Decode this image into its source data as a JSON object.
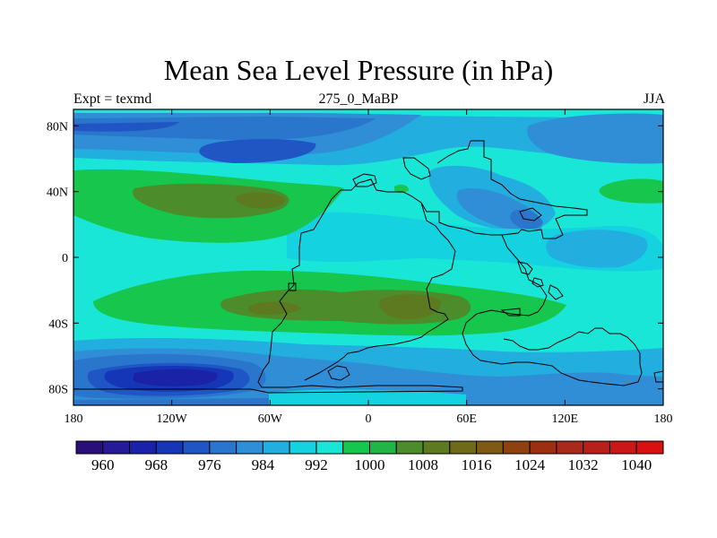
{
  "title": "Mean Sea Level Pressure (in hPa)",
  "subtitle_left": "Expt = texmd",
  "subtitle_center": "275_0_MaBP",
  "subtitle_right": "JJA",
  "map": {
    "lon_range": [
      -180,
      180
    ],
    "lat_range": [
      -90,
      90
    ],
    "lat_ticks": [
      {
        "value": 80,
        "label": "80N"
      },
      {
        "value": 40,
        "label": "40N"
      },
      {
        "value": 0,
        "label": "0"
      },
      {
        "value": -40,
        "label": "40S"
      },
      {
        "value": -80,
        "label": "80S"
      }
    ],
    "lon_ticks": [
      {
        "value": -180,
        "label": "180"
      },
      {
        "value": -120,
        "label": "120W"
      },
      {
        "value": -60,
        "label": "60W"
      },
      {
        "value": 0,
        "label": "0"
      },
      {
        "value": 60,
        "label": "60E"
      },
      {
        "value": 120,
        "label": "120E"
      },
      {
        "value": 180,
        "label": "180"
      }
    ]
  },
  "colorbar": {
    "colors": [
      "#2b0f78",
      "#261a96",
      "#1a22a8",
      "#1636b8",
      "#1f56c4",
      "#2a76cc",
      "#2f8ed6",
      "#22aede",
      "#14d2e0",
      "#1ae6d8",
      "#17c64c",
      "#22b444",
      "#4c8c2a",
      "#5e7a20",
      "#6e6a1a",
      "#7e5a14",
      "#8e4210",
      "#9a3010",
      "#a82a1a",
      "#b8201a",
      "#c81818",
      "#d81010"
    ],
    "labels": [
      {
        "index": 1,
        "label": "960"
      },
      {
        "index": 3,
        "label": "968"
      },
      {
        "index": 5,
        "label": "976"
      },
      {
        "index": 7,
        "label": "984"
      },
      {
        "index": 9,
        "label": "992"
      },
      {
        "index": 11,
        "label": "1000"
      },
      {
        "index": 13,
        "label": "1008"
      },
      {
        "index": 15,
        "label": "1016"
      },
      {
        "index": 17,
        "label": "1024"
      },
      {
        "index": 19,
        "label": "1032"
      },
      {
        "index": 21,
        "label": "1040"
      }
    ]
  }
}
